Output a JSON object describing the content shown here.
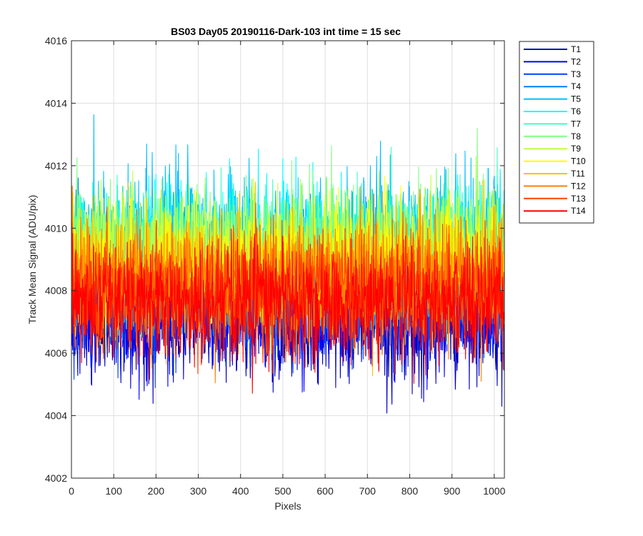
{
  "chart_data": {
    "type": "line",
    "title": "BS03 Day05 20190116-Dark-103 int time = 15 sec",
    "xlabel": "Pixels",
    "ylabel": "Track Mean Signal (ADU/pix)",
    "xlim": [
      0,
      1024
    ],
    "ylim": [
      4002,
      4016
    ],
    "xticks": [
      0,
      100,
      200,
      300,
      400,
      500,
      600,
      700,
      800,
      900,
      1000
    ],
    "yticks": [
      4002,
      4004,
      4006,
      4008,
      4010,
      4012,
      4014,
      4016
    ],
    "grid": true,
    "legend_position": "outside-top-right",
    "n_points": 1024,
    "series": [
      {
        "name": "T1",
        "color": "#0000bf",
        "mean": 4006.9,
        "spread": 0.85
      },
      {
        "name": "T2",
        "color": "#0000ff",
        "mean": 4007.3,
        "spread": 0.85
      },
      {
        "name": "T3",
        "color": "#0040ff",
        "mean": 4007.8,
        "spread": 0.9
      },
      {
        "name": "T4",
        "color": "#0080ff",
        "mean": 4008.6,
        "spread": 1.0
      },
      {
        "name": "T5",
        "color": "#00bfff",
        "mean": 4009.6,
        "spread": 1.05
      },
      {
        "name": "T6",
        "color": "#00ffff",
        "mean": 4009.4,
        "spread": 1.0
      },
      {
        "name": "T7",
        "color": "#40ffbf",
        "mean": 4009.2,
        "spread": 1.0
      },
      {
        "name": "T8",
        "color": "#80ff80",
        "mean": 4009.3,
        "spread": 1.05
      },
      {
        "name": "T9",
        "color": "#bfff40",
        "mean": 4009.1,
        "spread": 1.0
      },
      {
        "name": "T10",
        "color": "#ffff00",
        "mean": 4008.9,
        "spread": 1.0
      },
      {
        "name": "T11",
        "color": "#ffbf00",
        "mean": 4008.6,
        "spread": 1.0
      },
      {
        "name": "T12",
        "color": "#ff8000",
        "mean": 4008.3,
        "spread": 0.95
      },
      {
        "name": "T13",
        "color": "#ff4000",
        "mean": 4008.0,
        "spread": 0.95
      },
      {
        "name": "T14",
        "color": "#ff0000",
        "mean": 4007.6,
        "spread": 0.9
      }
    ]
  }
}
